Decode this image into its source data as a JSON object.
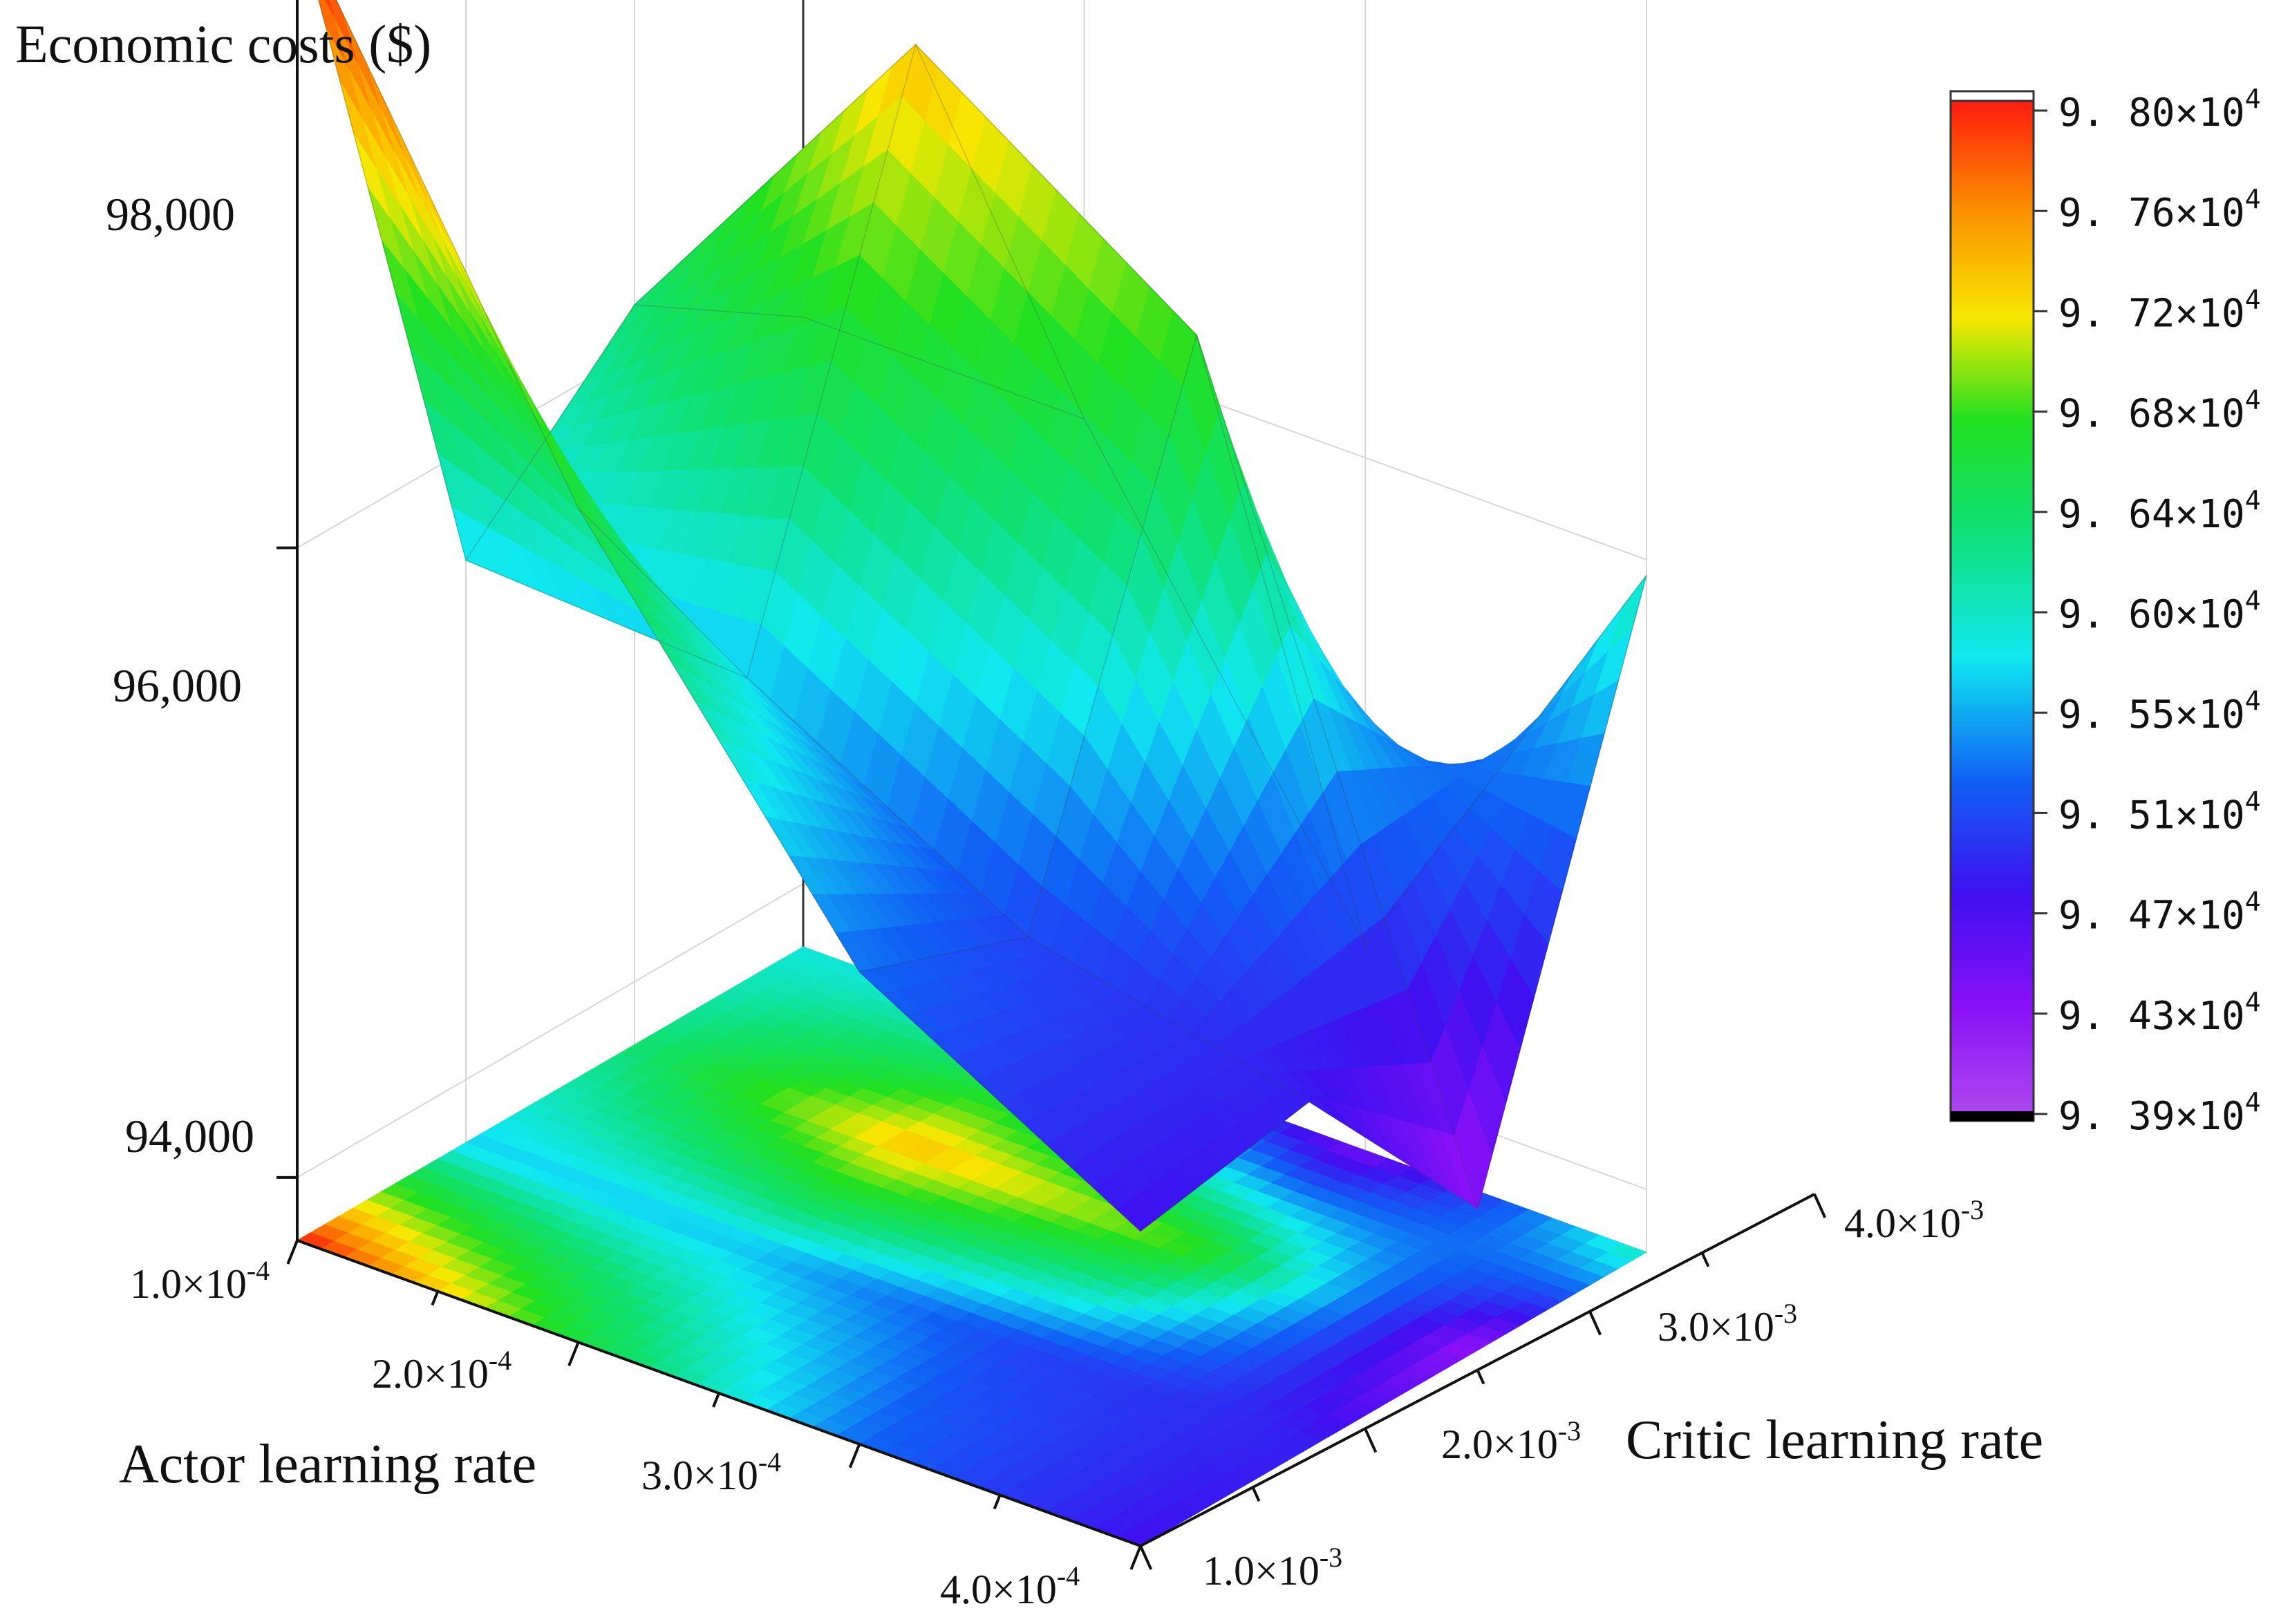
{
  "chart_data": {
    "type": "surface3d",
    "title": "",
    "zlabel": "Economic costs ($)",
    "xlabel": "Actor learning rate",
    "ylabel": "Critic learning rate",
    "x_values": [
      0.0001,
      0.0002,
      0.0003,
      0.0004
    ],
    "y_values": [
      0.001,
      0.002,
      0.003,
      0.004
    ],
    "x_tick_labels": [
      {
        "base": "1.0×10",
        "exp": "-4"
      },
      {
        "base": "2.0×10",
        "exp": "-4"
      },
      {
        "base": "3.0×10",
        "exp": "-4"
      },
      {
        "base": "4.0×10",
        "exp": "-4"
      }
    ],
    "y_tick_labels": [
      {
        "base": "1.0×10",
        "exp": "-3"
      },
      {
        "base": "2.0×10",
        "exp": "-3"
      },
      {
        "base": "3.0×10",
        "exp": "-3"
      },
      {
        "base": "4.0×10",
        "exp": "-3"
      }
    ],
    "z_ticks": [
      94000,
      96000,
      98000
    ],
    "z_tick_labels": [
      "94,000",
      "96,000",
      "98,000"
    ],
    "zlim": [
      93800,
      98300
    ],
    "z_grid": [
      [
        98000,
        95650,
        96150,
        95800
      ],
      [
        96450,
        95600,
        97300,
        95800
      ],
      [
        95300,
        95100,
        96700,
        94450
      ],
      [
        94800,
        94900,
        94250,
        95950
      ]
    ],
    "colorbar": {
      "min": 93900,
      "max": 98000,
      "tick_labels": [
        {
          "base": "9. 80×10",
          "exp": "4"
        },
        {
          "base": "9. 76×10",
          "exp": "4"
        },
        {
          "base": "9. 72×10",
          "exp": "4"
        },
        {
          "base": "9. 68×10",
          "exp": "4"
        },
        {
          "base": "9. 64×10",
          "exp": "4"
        },
        {
          "base": "9. 60×10",
          "exp": "4"
        },
        {
          "base": "9. 55×10",
          "exp": "4"
        },
        {
          "base": "9. 51×10",
          "exp": "4"
        },
        {
          "base": "9. 47×10",
          "exp": "4"
        },
        {
          "base": "9. 43×10",
          "exp": "4"
        },
        {
          "base": "9. 39×10",
          "exp": "4"
        }
      ],
      "colormap": [
        "#b04cf0",
        "#8a10f6",
        "#3f10f0",
        "#1060f5",
        "#10e8f0",
        "#10e070",
        "#20e020",
        "#f8e800",
        "#fb8a00",
        "#ff1010"
      ]
    },
    "grid": true,
    "floor_projection": true
  }
}
